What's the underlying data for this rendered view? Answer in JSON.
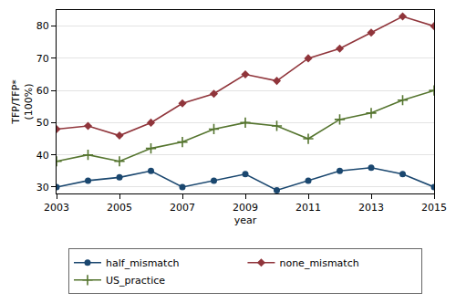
{
  "chart_data": {
    "type": "line",
    "x_label": "year",
    "y_label": "TFP/TFP*\n(100%)",
    "x": [
      2003,
      2004,
      2005,
      2006,
      2007,
      2008,
      2009,
      2010,
      2011,
      2012,
      2013,
      2014,
      2015
    ],
    "series": [
      {
        "name": "half_mismatch",
        "color": "#1a476f",
        "marker": "circle",
        "values": [
          30,
          32,
          33,
          35,
          30,
          32,
          34,
          29,
          32,
          35,
          36,
          34,
          30
        ]
      },
      {
        "name": "none_mismatch",
        "color": "#90353b",
        "marker": "diamond",
        "values": [
          48,
          49,
          46,
          50,
          56,
          59,
          65,
          63,
          70,
          73,
          78,
          83,
          80
        ]
      },
      {
        "name": "US_practice",
        "color": "#55752f",
        "marker": "plus",
        "values": [
          38,
          40,
          38,
          42,
          44,
          48,
          50,
          49,
          45,
          51,
          53,
          57,
          60
        ]
      }
    ],
    "xlim": [
      2003,
      2015
    ],
    "xticks": [
      2003,
      2005,
      2007,
      2009,
      2011,
      2013,
      2015
    ],
    "ylim": [
      28,
      85
    ],
    "yticks": [
      30,
      40,
      50,
      60,
      70,
      80
    ],
    "grid": true,
    "legend": "bottom"
  }
}
